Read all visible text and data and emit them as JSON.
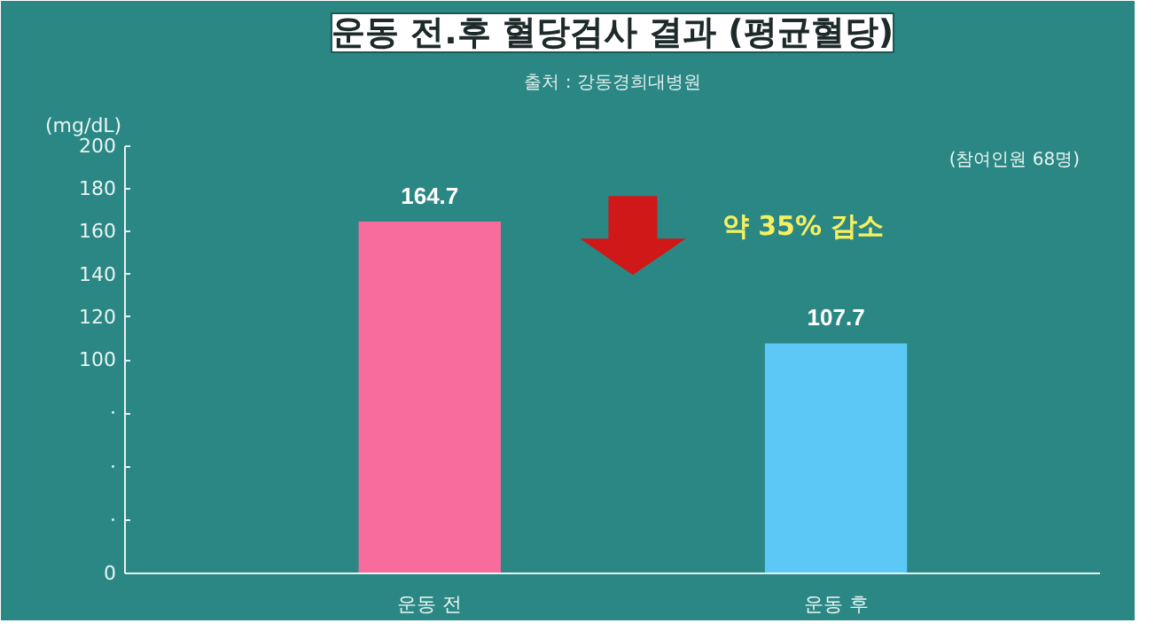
{
  "chart_data": {
    "type": "bar",
    "title": "운동 전.후 혈당검사 결과 (평균혈당)",
    "subtitle": "출처 : 강동경희대병원",
    "ylabel": "(mg/dL)",
    "categories": [
      "운동 전",
      "운동 후"
    ],
    "values": [
      164.7,
      107.7
    ],
    "colors": [
      "#f76c9c",
      "#5bc8f5"
    ],
    "ylim": [
      0,
      200
    ],
    "yticks": [
      0,
      {
        "value": 25,
        "label": "·"
      },
      {
        "value": 50,
        "label": "·"
      },
      {
        "value": 75,
        "label": "·"
      },
      100,
      120,
      140,
      160,
      180,
      200
    ],
    "data_labels": true,
    "grid": false,
    "annotations": [
      "(참여인원 68명)",
      "약 35% 감소"
    ]
  }
}
